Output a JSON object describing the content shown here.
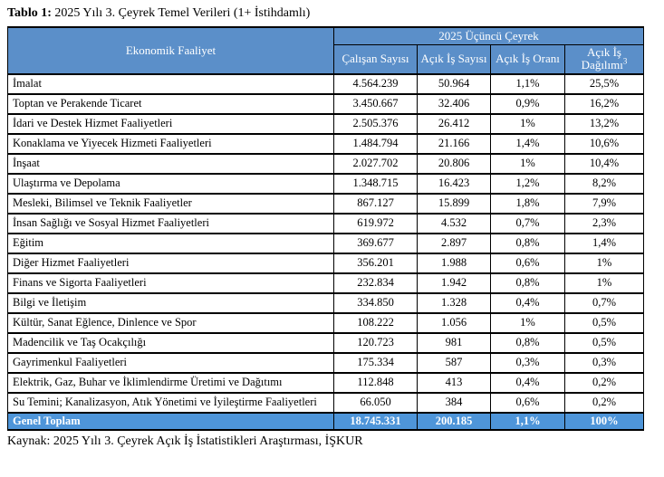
{
  "title": {
    "label": "Tablo 1:",
    "text": " 2025 Yılı 3. Çeyrek Temel Verileri (1+ İstihdamlı)"
  },
  "table": {
    "group_header": "2025 Üçüncü Çeyrek",
    "row_header": "Ekonomik Faaliyet",
    "columns": [
      "Çalışan Sayısı",
      "Açık İş Sayısı",
      "Açık İş Oranı",
      "Açık İş Dağılımı"
    ],
    "share_footnote": "3",
    "rows": [
      {
        "activity": "İmalat",
        "employees": "4.564.239",
        "vacancies": "50.964",
        "rate": "1,1%",
        "share": "25,5%"
      },
      {
        "activity": "Toptan ve Perakende Ticaret",
        "employees": "3.450.667",
        "vacancies": "32.406",
        "rate": "0,9%",
        "share": "16,2%"
      },
      {
        "activity": "İdari ve Destek Hizmet Faaliyetleri",
        "employees": "2.505.376",
        "vacancies": "26.412",
        "rate": "1%",
        "share": "13,2%"
      },
      {
        "activity": "Konaklama ve Yiyecek Hizmeti Faaliyetleri",
        "employees": "1.484.794",
        "vacancies": "21.166",
        "rate": "1,4%",
        "share": "10,6%"
      },
      {
        "activity": "İnşaat",
        "employees": "2.027.702",
        "vacancies": "20.806",
        "rate": "1%",
        "share": "10,4%"
      },
      {
        "activity": "Ulaştırma ve Depolama",
        "employees": "1.348.715",
        "vacancies": "16.423",
        "rate": "1,2%",
        "share": "8,2%"
      },
      {
        "activity": "Mesleki, Bilimsel ve Teknik Faaliyetler",
        "employees": "867.127",
        "vacancies": "15.899",
        "rate": "1,8%",
        "share": "7,9%"
      },
      {
        "activity": "İnsan Sağlığı ve Sosyal Hizmet Faaliyetleri",
        "employees": "619.972",
        "vacancies": "4.532",
        "rate": "0,7%",
        "share": "2,3%"
      },
      {
        "activity": "Eğitim",
        "employees": "369.677",
        "vacancies": "2.897",
        "rate": "0,8%",
        "share": "1,4%"
      },
      {
        "activity": "Diğer Hizmet Faaliyetleri",
        "employees": "356.201",
        "vacancies": "1.988",
        "rate": "0,6%",
        "share": "1%"
      },
      {
        "activity": "Finans ve Sigorta Faaliyetleri",
        "employees": "232.834",
        "vacancies": "1.942",
        "rate": "0,8%",
        "share": "1%"
      },
      {
        "activity": "Bilgi ve İletişim",
        "employees": "334.850",
        "vacancies": "1.328",
        "rate": "0,4%",
        "share": "0,7%"
      },
      {
        "activity": "Kültür, Sanat Eğlence, Dinlence ve Spor",
        "employees": "108.222",
        "vacancies": "1.056",
        "rate": "1%",
        "share": "0,5%"
      },
      {
        "activity": "Madencilik ve Taş Ocakçılığı",
        "employees": "120.723",
        "vacancies": "981",
        "rate": "0,8%",
        "share": "0,5%"
      },
      {
        "activity": "Gayrimenkul Faaliyetleri",
        "employees": "175.334",
        "vacancies": "587",
        "rate": "0,3%",
        "share": "0,3%"
      },
      {
        "activity": "Elektrik, Gaz, Buhar ve İklimlendirme Üretimi ve Dağıtımı",
        "employees": "112.848",
        "vacancies": "413",
        "rate": "0,4%",
        "share": "0,2%"
      },
      {
        "activity": "Su Temini; Kanalizasyon, Atık Yönetimi ve İyileştirme Faaliyetleri",
        "employees": "66.050",
        "vacancies": "384",
        "rate": "0,6%",
        "share": "0,2%"
      }
    ],
    "total": {
      "activity": "Genel Toplam",
      "employees": "18.745.331",
      "vacancies": "200.185",
      "rate": "1,1%",
      "share": "100%"
    }
  },
  "source": "Kaynak: 2025 Yılı 3. Çeyrek Açık İş İstatistikleri Araştırması, İŞKUR",
  "colors": {
    "header_bg": "#5b8fc9",
    "total_bg": "#4e95d9",
    "header_text": "#ffffff",
    "border": "#000000"
  }
}
